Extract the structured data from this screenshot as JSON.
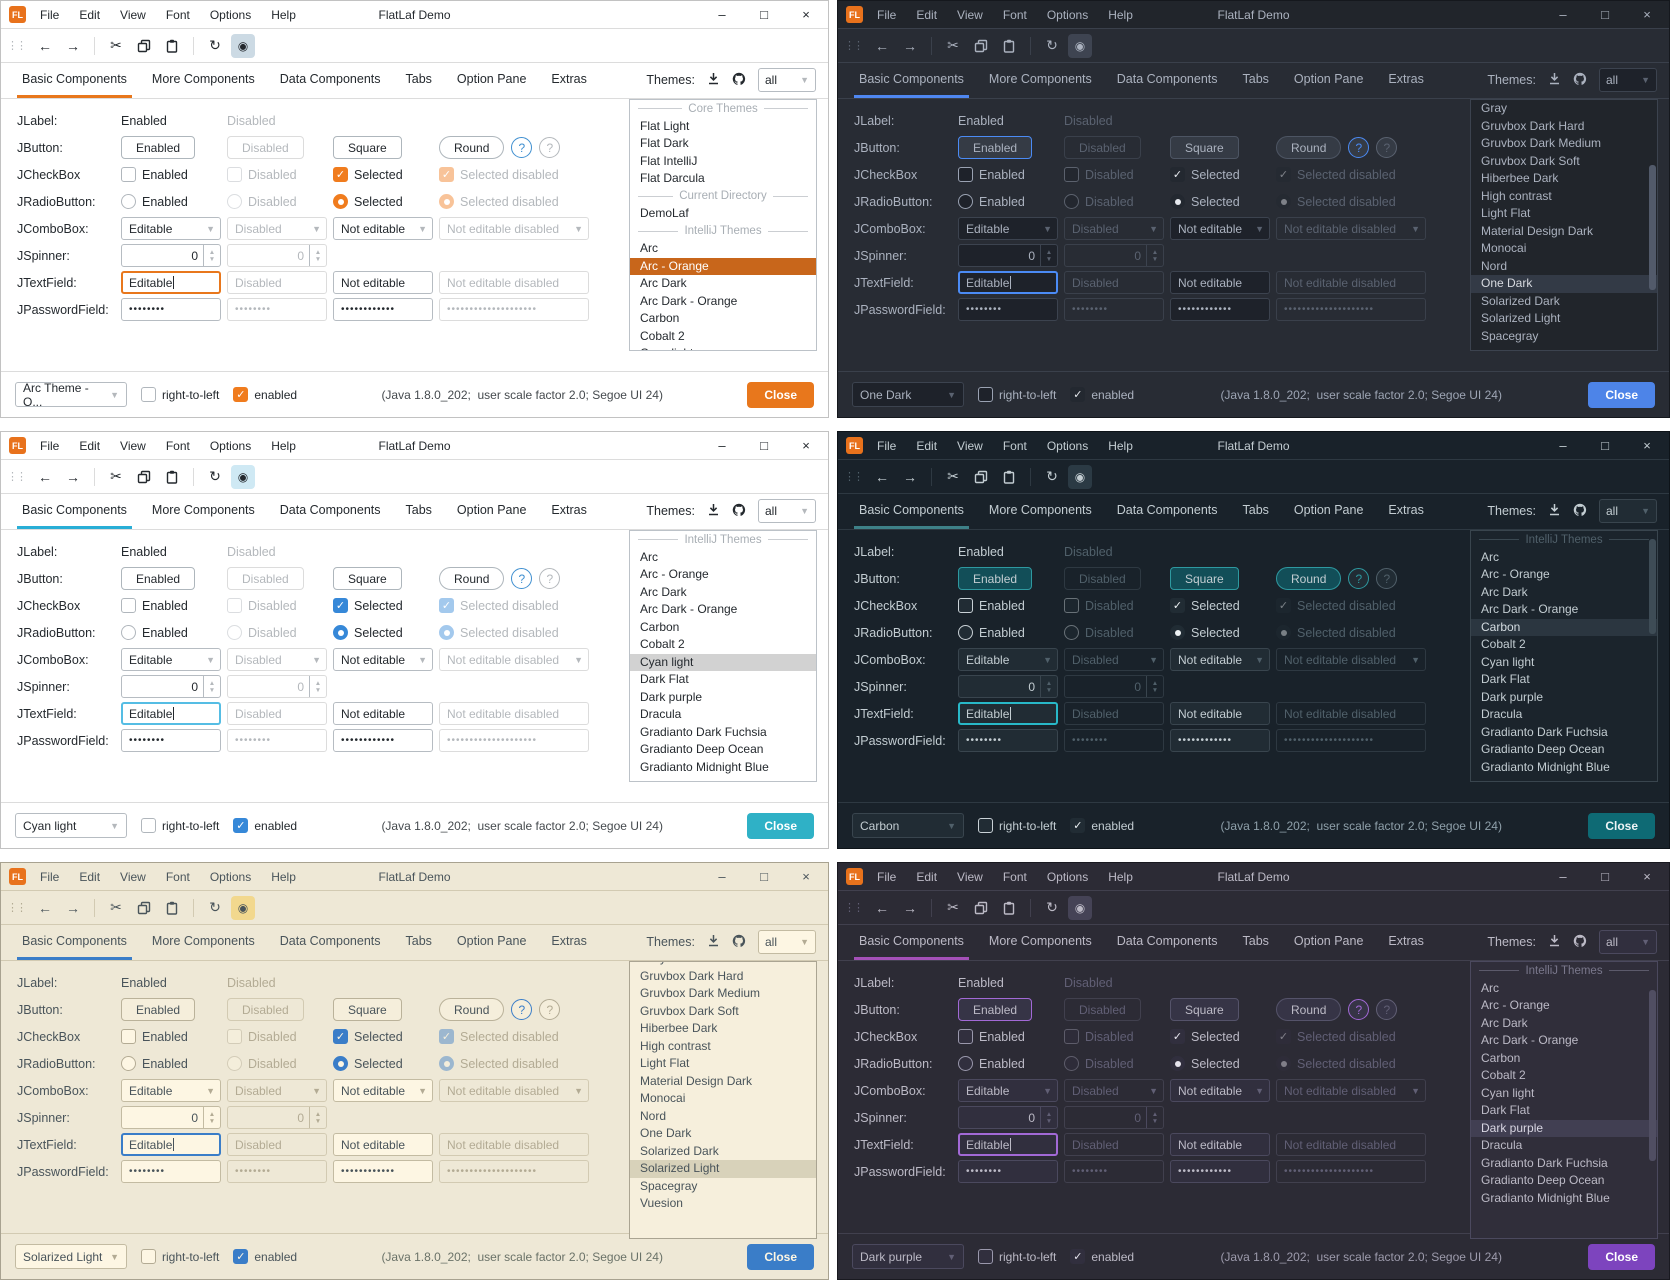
{
  "common": {
    "window_title": "FlatLaf Demo",
    "menu": [
      "File",
      "Edit",
      "View",
      "Font",
      "Options",
      "Help"
    ],
    "window_controls": {
      "minimize": "–",
      "maximize": "□",
      "close": "×"
    },
    "toolbar_icons": [
      "grip",
      "back-arrow",
      "forward-arrow",
      "cut-scissors",
      "copy",
      "paste",
      "refresh",
      "eye-toggle"
    ],
    "tabs": [
      "Basic Components",
      "More Components",
      "Data Components",
      "Tabs",
      "Option Pane",
      "Extras"
    ],
    "themes_label": "Themes:",
    "filter_value": "all",
    "labels": {
      "jlabel": "JLabel:",
      "jbutton": "JButton:",
      "jcheckbox": "JCheckBox",
      "jradiobutton": "JRadioButton:",
      "jcombobox": "JComboBox:",
      "jspinner": "JSpinner:",
      "jtextfield": "JTextField:",
      "jpasswordfield": "JPasswordField:"
    },
    "values": {
      "enabled": "Enabled",
      "disabled": "Disabled",
      "square": "Square",
      "round": "Round",
      "selected": "Selected",
      "selected_disabled": "Selected disabled",
      "editable": "Editable",
      "not_editable": "Not editable",
      "not_editable_disabled": "Not editable disabled",
      "spinner_value": "0",
      "help": "?",
      "password_short": "••••••••",
      "password_medium": "••••••••••••",
      "password_long": "••••••••••••••••••••"
    },
    "statusbar": {
      "rtl": "right-to-left",
      "enabled": "enabled",
      "status": "(Java 1.8.0_202;  user scale factor 2.0; Segoe UI 24)",
      "close": "Close"
    }
  },
  "windows": [
    {
      "selected_theme": "Arc - Orange",
      "combo_value": "Arc Theme - O...",
      "scrollbar": null,
      "list": [
        [
          "sep",
          "Core Themes"
        ],
        [
          "item",
          "Flat Light"
        ],
        [
          "item",
          "Flat Dark"
        ],
        [
          "item",
          "Flat IntelliJ"
        ],
        [
          "item",
          "Flat Darcula"
        ],
        [
          "sep",
          "Current Directory"
        ],
        [
          "item",
          "DemoLaf"
        ],
        [
          "sep",
          "IntelliJ Themes"
        ],
        [
          "item",
          "Arc"
        ],
        [
          "selected",
          "Arc - Orange"
        ],
        [
          "item",
          "Arc Dark"
        ],
        [
          "item",
          "Arc Dark - Orange"
        ],
        [
          "item",
          "Carbon"
        ],
        [
          "item",
          "Cobalt 2"
        ],
        [
          "item",
          "Cyan light"
        ]
      ],
      "colors": {
        "bg": "#ffffff",
        "titlebar_bg": "#ffffff",
        "window_border": "#c2c2c2",
        "divider": "#dcdcdc",
        "text": "#24292e",
        "muted_text": "#b4b8bc",
        "accent_underline": "#e8771c",
        "focus_border": "#e8771c",
        "field_bg": "#ffffff",
        "field_border": "#b6bcc2",
        "button_bg": "#ffffff",
        "button_border": "#aeb6bc",
        "enabled_button_border": "#aeb6bc",
        "alt_button_bg": "#ffffff",
        "alt_button_border": "#aeb6bc",
        "toggle_bg": "#ccdae4",
        "checkbox_fill": "#f07c1e",
        "checkbox_border": "#b0b6bc",
        "check_mark": "#ffffff",
        "list_bg": "#ffffff",
        "list_border": "#bcc2c8",
        "selection_bg": "#c8661b",
        "selection_text": "#ffffff",
        "separator_text": "#a8aeb4",
        "close_bg": "#e8771c",
        "close_text": "#ffffff",
        "help_accent": "#3f8fd0",
        "status_text": "#454a4e",
        "scroll_thumb": "#cccccc",
        "logo_bg": "#e8721c"
      }
    },
    {
      "selected_theme": "One Dark",
      "combo_value": "One Dark",
      "scrollbar": {
        "top_pct": 26,
        "height_pct": 50
      },
      "list": [
        [
          "item",
          "Gray"
        ],
        [
          "item",
          "Gruvbox Dark Hard"
        ],
        [
          "item",
          "Gruvbox Dark Medium"
        ],
        [
          "item",
          "Gruvbox Dark Soft"
        ],
        [
          "item",
          "Hiberbee Dark"
        ],
        [
          "item",
          "High contrast"
        ],
        [
          "item",
          "Light Flat"
        ],
        [
          "item",
          "Material Design Dark"
        ],
        [
          "item",
          "Monocai"
        ],
        [
          "item",
          "Nord"
        ],
        [
          "selected",
          "One Dark"
        ],
        [
          "item",
          "Solarized Dark"
        ],
        [
          "item",
          "Solarized Light"
        ],
        [
          "item",
          "Spacegray"
        ]
      ],
      "colors": {
        "bg": "#282c34",
        "titlebar_bg": "#21252b",
        "window_border": "#15181d",
        "divider": "#3a404b",
        "text": "#abb2bf",
        "muted_text": "#5a6270",
        "accent_underline": "#4f87f0",
        "focus_border": "#4b8bf5",
        "field_bg": "#1e222a",
        "field_border": "#3c434f",
        "button_bg": "#353b45",
        "button_border": "#4d5563",
        "enabled_button_border": "#4b8bf5",
        "alt_button_bg": "#353b45",
        "alt_button_border": "#4d5563",
        "toggle_bg": "#3e4451",
        "checkbox_fill": "#232830",
        "checkbox_border": "#9aa2b2",
        "check_mark": "#e6e9ee",
        "list_bg": "#21252b",
        "list_border": "#3c434f",
        "selection_bg": "#333a46",
        "selection_text": "#d7dae0",
        "separator_text": "#5a6270",
        "close_bg": "#4d84e8",
        "close_text": "#ffffff",
        "help_accent": "#4b8bf5",
        "status_text": "#9da5b4",
        "scroll_thumb": "#525a6a",
        "logo_bg": "#e8721c"
      }
    },
    {
      "selected_theme": "Cyan light",
      "combo_value": "Cyan light",
      "scrollbar": null,
      "list": [
        [
          "sep",
          "IntelliJ Themes"
        ],
        [
          "item",
          "Arc"
        ],
        [
          "item",
          "Arc - Orange"
        ],
        [
          "item",
          "Arc Dark"
        ],
        [
          "item",
          "Arc Dark - Orange"
        ],
        [
          "item",
          "Carbon"
        ],
        [
          "item",
          "Cobalt 2"
        ],
        [
          "selected",
          "Cyan light"
        ],
        [
          "item",
          "Dark Flat"
        ],
        [
          "item",
          "Dark purple"
        ],
        [
          "item",
          "Dracula"
        ],
        [
          "item",
          "Gradianto Dark Fuchsia"
        ],
        [
          "item",
          "Gradianto Deep Ocean"
        ],
        [
          "item",
          "Gradianto Midnight Blue"
        ]
      ],
      "colors": {
        "bg": "#ffffff",
        "titlebar_bg": "#ffffff",
        "window_border": "#c2c2c2",
        "divider": "#dcdcdc",
        "text": "#24292e",
        "muted_text": "#b4b8bc",
        "accent_underline": "#29aed6",
        "focus_border": "#55bde4",
        "field_bg": "#ffffff",
        "field_border": "#b6bcc2",
        "button_bg": "#ffffff",
        "button_border": "#aeb6bc",
        "enabled_button_border": "#aeb6bc",
        "alt_button_bg": "#ffffff",
        "alt_button_border": "#aeb6bc",
        "toggle_bg": "#cfe9f4",
        "checkbox_fill": "#3688d8",
        "checkbox_border": "#b0b6bc",
        "check_mark": "#ffffff",
        "list_bg": "#ffffff",
        "list_border": "#bcc2c8",
        "selection_bg": "#d2d2d2",
        "selection_text": "#24292e",
        "separator_text": "#a8aeb4",
        "close_bg": "#2fb1c6",
        "close_text": "#ffffff",
        "help_accent": "#3f8fd0",
        "status_text": "#454a4e",
        "scroll_thumb": "#cccccc",
        "logo_bg": "#e8721c"
      }
    },
    {
      "selected_theme": "Carbon",
      "combo_value": "Carbon",
      "scrollbar": {
        "top_pct": 3,
        "height_pct": 38
      },
      "list": [
        [
          "sep",
          "IntelliJ Themes"
        ],
        [
          "item",
          "Arc"
        ],
        [
          "item",
          "Arc - Orange"
        ],
        [
          "item",
          "Arc Dark"
        ],
        [
          "item",
          "Arc Dark - Orange"
        ],
        [
          "selected",
          "Carbon"
        ],
        [
          "item",
          "Cobalt 2"
        ],
        [
          "item",
          "Cyan light"
        ],
        [
          "item",
          "Dark Flat"
        ],
        [
          "item",
          "Dark purple"
        ],
        [
          "item",
          "Dracula"
        ],
        [
          "item",
          "Gradianto Dark Fuchsia"
        ],
        [
          "item",
          "Gradianto Deep Ocean"
        ],
        [
          "item",
          "Gradianto Midnight Blue"
        ]
      ],
      "colors": {
        "bg": "#19222a",
        "titlebar_bg": "#19222a",
        "window_border": "#0d1318",
        "divider": "#2e3942",
        "text": "#c3cdd2",
        "muted_text": "#50606a",
        "accent_underline": "#3e8188",
        "focus_border": "#28b8c8",
        "field_bg": "#212c34",
        "field_border": "#39454e",
        "button_bg": "#212c34",
        "button_border": "#39454e",
        "enabled_button_border": "#2e99a0",
        "alt_button_bg": "#124e58",
        "alt_button_border": "#2e99a0",
        "toggle_bg": "#2b3a44",
        "checkbox_fill": "#212c34",
        "checkbox_border": "#c9d1d6",
        "check_mark": "#eef3f5",
        "list_bg": "#1b242c",
        "list_border": "#39454e",
        "selection_bg": "#2b3640",
        "selection_text": "#d5dde2",
        "separator_text": "#50606a",
        "close_bg": "#0e6a74",
        "close_text": "#eef3f5",
        "help_accent": "#2e99a0",
        "status_text": "#8fa0aa",
        "scroll_thumb": "#3e4c56",
        "logo_bg": "#e8721c"
      }
    },
    {
      "selected_theme": "Solarized Light",
      "combo_value": "Solarized Light",
      "scrollbar": null,
      "list": [
        [
          "cut",
          "Gray"
        ],
        [
          "item",
          "Gruvbox Dark Hard"
        ],
        [
          "item",
          "Gruvbox Dark Medium"
        ],
        [
          "item",
          "Gruvbox Dark Soft"
        ],
        [
          "item",
          "Hiberbee Dark"
        ],
        [
          "item",
          "High contrast"
        ],
        [
          "item",
          "Light Flat"
        ],
        [
          "item",
          "Material Design Dark"
        ],
        [
          "item",
          "Monocai"
        ],
        [
          "item",
          "Nord"
        ],
        [
          "item",
          "One Dark"
        ],
        [
          "item",
          "Solarized Dark"
        ],
        [
          "selected",
          "Solarized Light"
        ],
        [
          "item",
          "Spacegray"
        ],
        [
          "item",
          "Vuesion"
        ]
      ],
      "colors": {
        "bg": "#eee8d6",
        "titlebar_bg": "#eee8d6",
        "window_border": "#a8a290",
        "divider": "#d2cab2",
        "text": "#49545a",
        "muted_text": "#b3ab94",
        "accent_underline": "#3a7dc8",
        "focus_border": "#3a7dc8",
        "field_bg": "#fdf6e3",
        "field_border": "#c3bba2",
        "button_bg": "#f5eedb",
        "button_border": "#bab29a",
        "enabled_button_border": "#bab29a",
        "alt_button_bg": "#f5eedb",
        "alt_button_border": "#bab29a",
        "toggle_bg": "#f2d88e",
        "checkbox_fill": "#3a7dc8",
        "checkbox_border": "#b3ab94",
        "check_mark": "#fdf6e3",
        "list_bg": "#f6efdc",
        "list_border": "#aaa492",
        "selection_bg": "#d8d2ba",
        "selection_text": "#49545a",
        "separator_text": "#b3ab94",
        "close_bg": "#3a7dc8",
        "close_text": "#fdf6e3",
        "help_accent": "#3a7dc8",
        "status_text": "#6a7268",
        "scroll_thumb": "#c8c0a8",
        "logo_bg": "#e8721c"
      }
    },
    {
      "selected_theme": "Dark purple",
      "combo_value": "Dark purple",
      "scrollbar": {
        "top_pct": 10,
        "height_pct": 62
      },
      "list": [
        [
          "sep",
          "IntelliJ Themes"
        ],
        [
          "item",
          "Arc"
        ],
        [
          "item",
          "Arc - Orange"
        ],
        [
          "item",
          "Arc Dark"
        ],
        [
          "item",
          "Arc Dark - Orange"
        ],
        [
          "item",
          "Carbon"
        ],
        [
          "item",
          "Cobalt 2"
        ],
        [
          "item",
          "Cyan light"
        ],
        [
          "item",
          "Dark Flat"
        ],
        [
          "selected",
          "Dark purple"
        ],
        [
          "item",
          "Dracula"
        ],
        [
          "item",
          "Gradianto Dark Fuchsia"
        ],
        [
          "item",
          "Gradianto Deep Ocean"
        ],
        [
          "item",
          "Gradianto Midnight Blue"
        ]
      ],
      "colors": {
        "bg": "#2c2b35",
        "titlebar_bg": "#2c2b35",
        "window_border": "#191920",
        "divider": "#41404e",
        "text": "#bcbac6",
        "muted_text": "#615f75",
        "accent_underline": "#a450b8",
        "focus_border": "#a269d6",
        "field_bg": "#312f3e",
        "field_border": "#4b495e",
        "button_bg": "#363446",
        "button_border": "#55536a",
        "enabled_button_border": "#a269d6",
        "alt_button_bg": "#363446",
        "alt_button_border": "#55536a",
        "toggle_bg": "#454356",
        "checkbox_fill": "#312f3e",
        "checkbox_border": "#9a98ac",
        "check_mark": "#e6e4ee",
        "list_bg": "#302e3a",
        "list_border": "#4b495e",
        "selection_bg": "#413f52",
        "selection_text": "#d8d6e2",
        "separator_text": "#7a788c",
        "close_bg": "#7d44be",
        "close_text": "#ffffff",
        "help_accent": "#a269d6",
        "status_text": "#9d9bac",
        "scroll_thumb": "#504e62",
        "logo_bg": "#e8721c"
      }
    }
  ]
}
